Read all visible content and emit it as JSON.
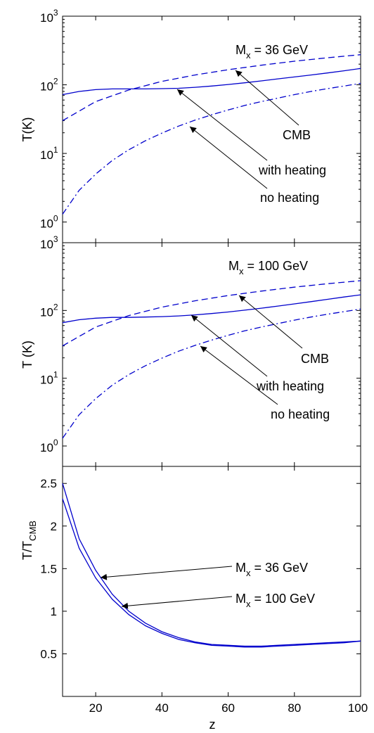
{
  "chart_data": [
    {
      "type": "line",
      "yscale": "log",
      "ylabel": "T(K)",
      "xlim": [
        10,
        100
      ],
      "ylim": [
        0.5,
        1000
      ],
      "yticks": [
        {
          "base": "10",
          "exp": "0"
        },
        {
          "base": "10",
          "exp": "1"
        },
        {
          "base": "10",
          "exp": "2"
        },
        {
          "base": "10",
          "exp": "3"
        }
      ],
      "mass_label": {
        "prefix": "M",
        "sub": "x",
        "suffix": " = 36 GeV"
      },
      "color": "#0000cc",
      "series": [
        {
          "name": "CMB",
          "style": "dashed",
          "x": [
            10,
            20,
            30,
            40,
            50,
            60,
            70,
            80,
            90,
            100
          ],
          "y": [
            30,
            57,
            84,
            112,
            139,
            166,
            193,
            221,
            248,
            275
          ]
        },
        {
          "name": "with heating",
          "style": "solid",
          "x": [
            10,
            15,
            20,
            25,
            30,
            35,
            40,
            45,
            50,
            55,
            60,
            65,
            70,
            75,
            80,
            85,
            90,
            95,
            100
          ],
          "y": [
            72,
            80,
            85,
            87,
            87,
            87,
            88,
            89,
            92,
            96,
            101,
            107,
            114,
            122,
            130,
            139,
            149,
            160,
            173
          ]
        },
        {
          "name": "no heating",
          "style": "dashdot",
          "x": [
            10,
            15,
            20,
            25,
            30,
            35,
            40,
            45,
            50,
            55,
            60,
            65,
            70,
            75,
            80,
            85,
            90,
            95,
            100
          ],
          "y": [
            1.3,
            2.9,
            5.0,
            7.9,
            11.3,
            15.3,
            19.8,
            25,
            30.5,
            36.5,
            43,
            50,
            57,
            64,
            72,
            80,
            88,
            96,
            105
          ]
        }
      ],
      "annotations": [
        {
          "text": "CMB",
          "x": 62,
          "y": 175
        },
        {
          "text": "with heating",
          "x": 46,
          "y": 89
        },
        {
          "text": "no heating",
          "x": 45,
          "y": 25
        }
      ]
    },
    {
      "type": "line",
      "yscale": "log",
      "ylabel": "T (K)",
      "xlim": [
        10,
        100
      ],
      "ylim": [
        0.5,
        1000
      ],
      "yticks": [
        {
          "base": "10",
          "exp": "0"
        },
        {
          "base": "10",
          "exp": "1"
        },
        {
          "base": "10",
          "exp": "2"
        },
        {
          "base": "10",
          "exp": "3"
        }
      ],
      "mass_label": {
        "prefix": "M",
        "sub": "x",
        "suffix": " = 100 GeV"
      },
      "color": "#0000cc",
      "series": [
        {
          "name": "CMB",
          "style": "dashed",
          "x": [
            10,
            20,
            30,
            40,
            50,
            60,
            70,
            80,
            90,
            100
          ],
          "y": [
            30,
            57,
            84,
            112,
            139,
            166,
            193,
            221,
            248,
            275
          ]
        },
        {
          "name": "with heating",
          "style": "solid",
          "x": [
            10,
            15,
            20,
            25,
            30,
            35,
            40,
            45,
            50,
            55,
            60,
            65,
            70,
            75,
            80,
            85,
            90,
            95,
            100
          ],
          "y": [
            66,
            73,
            77,
            79,
            79,
            80,
            81,
            83,
            86,
            90,
            95,
            101,
            108,
            116,
            125,
            135,
            146,
            158,
            170
          ]
        },
        {
          "name": "no heating",
          "style": "dashdot",
          "x": [
            10,
            15,
            20,
            25,
            30,
            35,
            40,
            45,
            50,
            55,
            60,
            65,
            70,
            75,
            80,
            85,
            90,
            95,
            100
          ],
          "y": [
            1.3,
            2.9,
            5.0,
            7.9,
            11.3,
            15.3,
            19.8,
            25,
            30.5,
            36.5,
            43,
            50,
            57,
            64,
            72,
            80,
            88,
            96,
            105
          ]
        }
      ],
      "annotations": [
        {
          "text": "CMB",
          "x": 62,
          "y": 175
        },
        {
          "text": "with heating",
          "x": 46,
          "y": 85
        },
        {
          "text": "no heating",
          "x": 51,
          "y": 30
        }
      ]
    },
    {
      "type": "line",
      "yscale": "linear",
      "ylabel": {
        "prefix": "T/T",
        "sub": "CMB"
      },
      "xlabel": "z",
      "xlim": [
        10,
        100
      ],
      "ylim": [
        0,
        2.7
      ],
      "xticks": [
        "20",
        "40",
        "60",
        "80",
        "100"
      ],
      "yticks": [
        "0.5",
        "1",
        "1.5",
        "2",
        "2.5"
      ],
      "color": "#0000cc",
      "series": [
        {
          "name": "M_x = 36 GeV",
          "style": "solid",
          "x": [
            10,
            15,
            20,
            25,
            30,
            35,
            40,
            45,
            50,
            55,
            60,
            65,
            70,
            75,
            80,
            85,
            90,
            95,
            100
          ],
          "y": [
            2.5,
            1.85,
            1.48,
            1.2,
            1.0,
            0.86,
            0.76,
            0.69,
            0.64,
            0.61,
            0.6,
            0.59,
            0.59,
            0.6,
            0.61,
            0.62,
            0.63,
            0.64,
            0.65
          ]
        },
        {
          "name": "M_x = 100 GeV",
          "style": "solid",
          "x": [
            10,
            15,
            20,
            25,
            30,
            35,
            40,
            45,
            50,
            55,
            60,
            65,
            70,
            75,
            80,
            85,
            90,
            95,
            100
          ],
          "y": [
            2.32,
            1.74,
            1.39,
            1.14,
            0.96,
            0.83,
            0.74,
            0.67,
            0.63,
            0.6,
            0.59,
            0.58,
            0.58,
            0.59,
            0.6,
            0.61,
            0.62,
            0.63,
            0.65
          ]
        }
      ],
      "annotations": [
        {
          "text": {
            "prefix": "M",
            "sub": "x",
            "suffix": " = 36 GeV"
          },
          "x": 22,
          "y": 1.45
        },
        {
          "text": {
            "prefix": "M",
            "sub": "x",
            "suffix": " = 100 GeV"
          },
          "x": 26,
          "y": 1.1
        }
      ]
    }
  ]
}
